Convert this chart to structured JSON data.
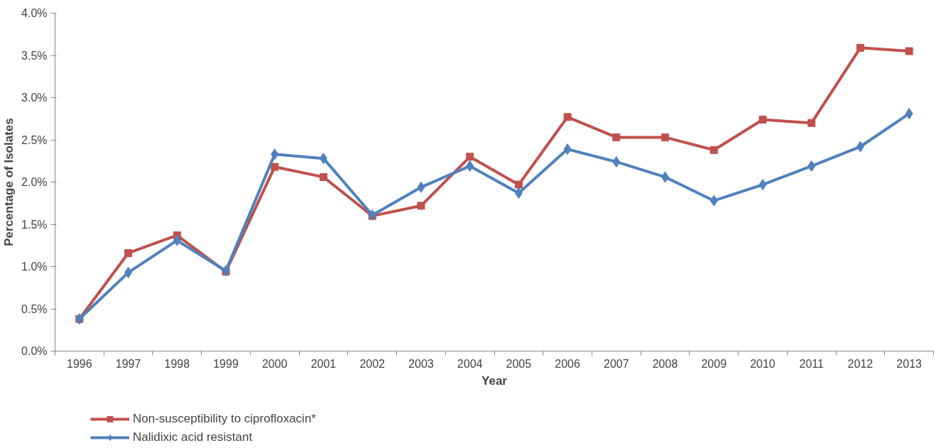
{
  "chart_data": {
    "type": "line",
    "xlabel": "Year",
    "ylabel": "Percentage of Isolates",
    "categories": [
      "1996",
      "1997",
      "1998",
      "1999",
      "2000",
      "2001",
      "2002",
      "2003",
      "2004",
      "2005",
      "2006",
      "2007",
      "2008",
      "2009",
      "2010",
      "2011",
      "2012",
      "2013"
    ],
    "series": [
      {
        "name": "Non-susceptibility to ciprofloxacin*",
        "color": "#c0504d",
        "marker": "square",
        "values": [
          0.38,
          1.16,
          1.37,
          0.94,
          2.18,
          2.06,
          1.6,
          1.72,
          2.3,
          1.97,
          2.77,
          2.53,
          2.53,
          2.38,
          2.74,
          2.7,
          3.59,
          3.55
        ]
      },
      {
        "name": "Nalidixic acid resistant",
        "color": "#4f81bd",
        "marker": "diamond",
        "values": [
          0.38,
          0.93,
          1.31,
          0.95,
          2.33,
          2.28,
          1.61,
          1.94,
          2.19,
          1.87,
          2.39,
          2.24,
          2.06,
          1.78,
          1.97,
          2.19,
          2.42,
          2.81
        ]
      }
    ],
    "ylim": [
      0,
      4
    ],
    "yticks": [
      {
        "value": 0,
        "label": "0.0%"
      },
      {
        "value": 0.5,
        "label": "0.5%"
      },
      {
        "value": 1,
        "label": "1.0%"
      },
      {
        "value": 1.5,
        "label": "1.5%"
      },
      {
        "value": 2,
        "label": "2.0%"
      },
      {
        "value": 2.5,
        "label": "2.5%"
      },
      {
        "value": 3,
        "label": "3.0%"
      },
      {
        "value": 3.5,
        "label": "3.5%"
      },
      {
        "value": 4,
        "label": "4.0%"
      }
    ],
    "grid": false,
    "legend": "bottom left",
    "line_style": "solid"
  }
}
